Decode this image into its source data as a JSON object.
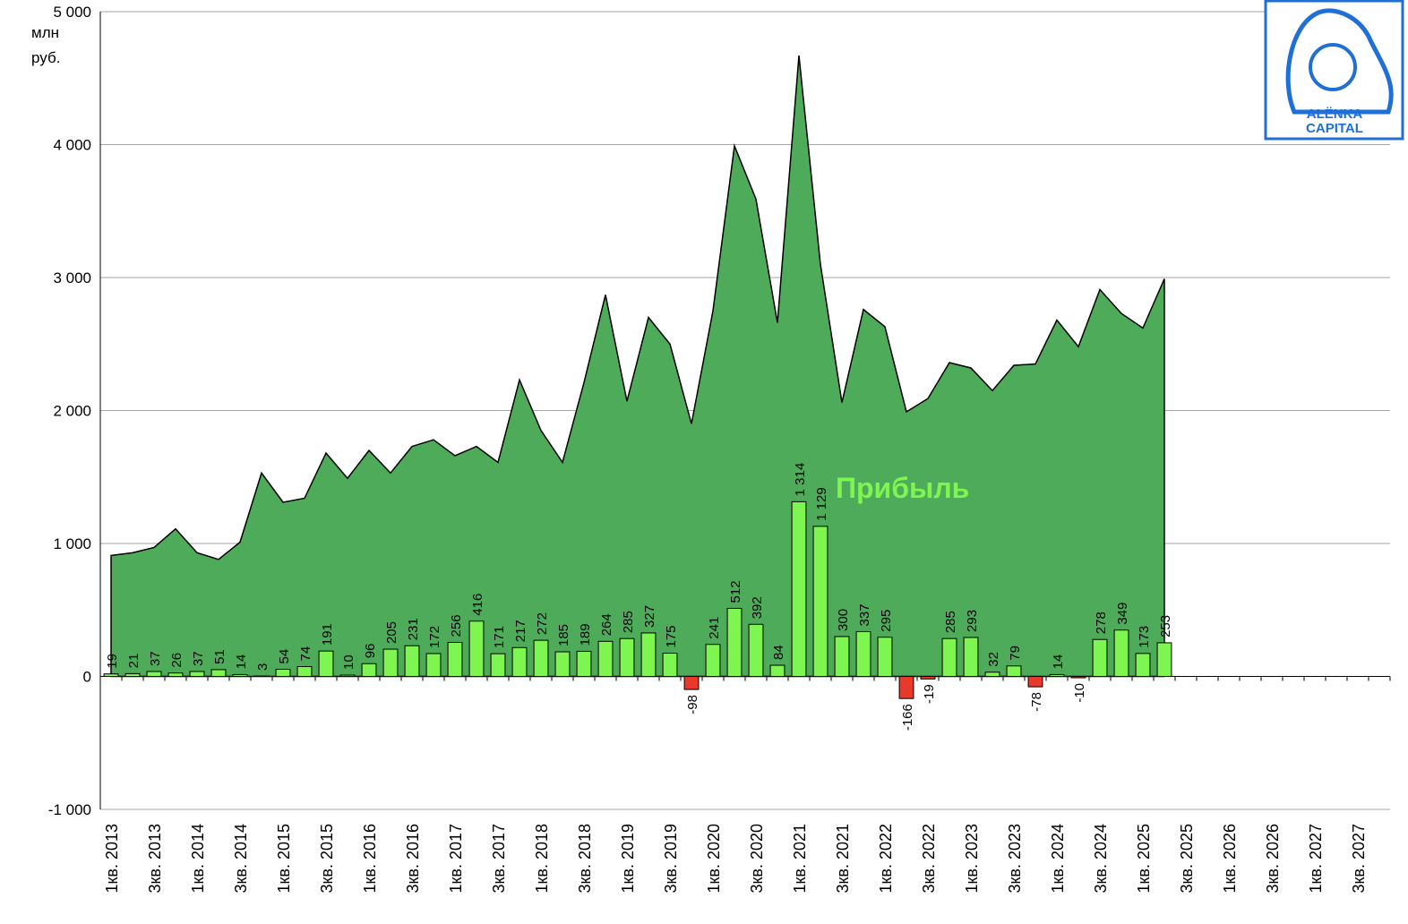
{
  "chart_data": {
    "type": "bar",
    "y_label": [
      "млн",
      "руб."
    ],
    "annotation": "Прибыль",
    "logo": [
      "ALЁNKA",
      "CAPITAL"
    ],
    "categories": [
      "1кв. 2013",
      null,
      "3кв. 2013",
      null,
      "1кв. 2014",
      null,
      "3кв. 2014",
      null,
      "1кв. 2015",
      null,
      "3кв. 2015",
      null,
      "1кв. 2016",
      null,
      "3кв. 2016",
      null,
      "1кв. 2017",
      null,
      "3кв. 2017",
      null,
      "1кв. 2018",
      null,
      "3кв. 2018",
      null,
      "1кв. 2019",
      null,
      "3кв. 2019",
      null,
      "1кв. 2020",
      null,
      "3кв. 2020",
      null,
      "1кв. 2021",
      null,
      "3кв. 2021",
      null,
      "1кв. 2022",
      null,
      "3кв. 2022",
      null,
      "1кв. 2023",
      null,
      "3кв. 2023",
      null,
      "1кв. 2024",
      null,
      "3кв. 2024",
      null,
      "1кв. 2025",
      null,
      "3кв. 2025",
      null,
      "1кв. 2026",
      null,
      "3кв. 2026",
      null,
      "1кв. 2027",
      null,
      "3кв. 2027",
      null
    ],
    "series": [
      {
        "type": "area",
        "color": "#4eab59",
        "values": [
          910,
          930,
          970,
          1110,
          930,
          880,
          1010,
          1530,
          1310,
          1340,
          1680,
          1490,
          1700,
          1530,
          1730,
          1780,
          1660,
          1730,
          1610,
          2230,
          1850,
          1610,
          2210,
          2870,
          2070,
          2700,
          2500,
          1900,
          2750,
          3990,
          3590,
          2660,
          4670,
          3100,
          2060,
          2760,
          2630,
          1990,
          2090,
          2360,
          2320,
          2150,
          2340,
          2350,
          2680,
          2480,
          2910,
          2730,
          2620,
          2990,
          null,
          null,
          null,
          null,
          null,
          null,
          null,
          null,
          null,
          null
        ]
      },
      {
        "type": "bar",
        "name": "Прибыль",
        "color": "#7ef550",
        "negative_color": "#e8392b",
        "values": [
          19,
          21,
          37,
          26,
          37,
          51,
          14,
          3,
          54,
          74,
          191,
          10,
          96,
          205,
          231,
          172,
          256,
          416,
          171,
          217,
          272,
          185,
          189,
          264,
          285,
          327,
          175,
          -98,
          241,
          512,
          392,
          84,
          1314,
          1129,
          300,
          337,
          295,
          -166,
          -19,
          285,
          293,
          32,
          79,
          -78,
          14,
          -10,
          278,
          349,
          173,
          253,
          null,
          null,
          null,
          null,
          null,
          null,
          null,
          null,
          null,
          null
        ],
        "value_labels": [
          "19",
          "21",
          "37",
          "26",
          "37",
          "51",
          "14",
          "3",
          "54",
          "74",
          "191",
          "10",
          "96",
          "205",
          "231",
          "172",
          "256",
          "416",
          "171",
          "217",
          "272",
          "185",
          "189",
          "264",
          "285",
          "327",
          "175",
          "-98",
          "241",
          "512",
          "392",
          "84",
          "1 314",
          "1 129",
          "300",
          "337",
          "295",
          "-166",
          "-19",
          "285",
          "293",
          "32",
          "79",
          "-78",
          "14",
          "-10",
          "278",
          "349",
          "173",
          "253",
          null,
          null,
          null,
          null,
          null,
          null,
          null,
          null,
          null,
          null
        ]
      }
    ],
    "ylim": [
      -1000,
      5000
    ],
    "yticks": [
      {
        "value": -1000,
        "label": "-1 000"
      },
      0,
      {
        "value": 1000,
        "label": "1 000"
      },
      {
        "value": 2000,
        "label": "2 000"
      },
      {
        "value": 3000,
        "label": "3 000"
      },
      {
        "value": 4000,
        "label": "4 000"
      },
      {
        "value": 5000,
        "label": "5 000"
      }
    ],
    "grid": true
  }
}
